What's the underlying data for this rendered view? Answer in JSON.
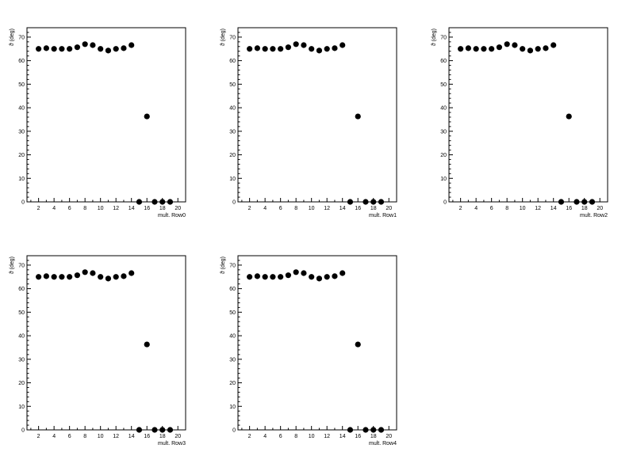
{
  "chart_data": [
    {
      "type": "scatter",
      "xlabel": "mult. Row0",
      "ylabel": "ϑ (deg)",
      "xlim": [
        0.5,
        21
      ],
      "ylim": [
        0,
        74
      ],
      "xticks": [
        2,
        4,
        6,
        8,
        10,
        12,
        14,
        16,
        18,
        20
      ],
      "yticks": [
        0,
        10,
        20,
        30,
        40,
        50,
        60,
        70
      ],
      "x": [
        2,
        3,
        4,
        5,
        6,
        7,
        8,
        9,
        10,
        11,
        12,
        13,
        14,
        15,
        16,
        17,
        18,
        19
      ],
      "y": [
        65,
        65.3,
        65,
        65,
        65,
        65.7,
        67,
        66.6,
        65,
        64.3,
        65,
        65.3,
        66.6,
        0,
        36.3,
        0,
        0,
        0
      ]
    },
    {
      "type": "scatter",
      "xlabel": "mult. Row1",
      "ylabel": "ϑ (deg)",
      "xlim": [
        0.5,
        21
      ],
      "ylim": [
        0,
        74
      ],
      "xticks": [
        2,
        4,
        6,
        8,
        10,
        12,
        14,
        16,
        18,
        20
      ],
      "yticks": [
        0,
        10,
        20,
        30,
        40,
        50,
        60,
        70
      ],
      "x": [
        2,
        3,
        4,
        5,
        6,
        7,
        8,
        9,
        10,
        11,
        12,
        13,
        14,
        15,
        16,
        17,
        18,
        19
      ],
      "y": [
        65,
        65.3,
        65,
        65,
        65,
        65.7,
        67,
        66.6,
        65,
        64.3,
        65,
        65.3,
        66.6,
        0,
        36.3,
        0,
        0,
        0
      ]
    },
    {
      "type": "scatter",
      "xlabel": "mult. Row2",
      "ylabel": "ϑ (deg)",
      "xlim": [
        0.5,
        21
      ],
      "ylim": [
        0,
        74
      ],
      "xticks": [
        2,
        4,
        6,
        8,
        10,
        12,
        14,
        16,
        18,
        20
      ],
      "yticks": [
        0,
        10,
        20,
        30,
        40,
        50,
        60,
        70
      ],
      "x": [
        2,
        3,
        4,
        5,
        6,
        7,
        8,
        9,
        10,
        11,
        12,
        13,
        14,
        15,
        16,
        17,
        18,
        19
      ],
      "y": [
        65,
        65.3,
        65,
        65,
        65,
        65.7,
        67,
        66.6,
        65,
        64.3,
        65,
        65.3,
        66.6,
        0,
        36.3,
        0,
        0,
        0
      ]
    },
    {
      "type": "scatter",
      "xlabel": "mult. Row3",
      "ylabel": "ϑ (deg)",
      "xlim": [
        0.5,
        21
      ],
      "ylim": [
        0,
        74
      ],
      "xticks": [
        2,
        4,
        6,
        8,
        10,
        12,
        14,
        16,
        18,
        20
      ],
      "yticks": [
        0,
        10,
        20,
        30,
        40,
        50,
        60,
        70
      ],
      "x": [
        2,
        3,
        4,
        5,
        6,
        7,
        8,
        9,
        10,
        11,
        12,
        13,
        14,
        15,
        16,
        17,
        18,
        19
      ],
      "y": [
        65,
        65.3,
        65,
        65,
        65,
        65.7,
        67,
        66.6,
        65,
        64.3,
        65,
        65.3,
        66.6,
        0,
        36.3,
        0,
        0,
        0
      ]
    },
    {
      "type": "scatter",
      "xlabel": "mult. Row4",
      "ylabel": "ϑ (deg)",
      "xlim": [
        0.5,
        21
      ],
      "ylim": [
        0,
        74
      ],
      "xticks": [
        2,
        4,
        6,
        8,
        10,
        12,
        14,
        16,
        18,
        20
      ],
      "yticks": [
        0,
        10,
        20,
        30,
        40,
        50,
        60,
        70
      ],
      "x": [
        2,
        3,
        4,
        5,
        6,
        7,
        8,
        9,
        10,
        11,
        12,
        13,
        14,
        15,
        16,
        17,
        18,
        19
      ],
      "y": [
        65,
        65.3,
        65,
        65,
        65,
        65.7,
        67,
        66.6,
        65,
        64.3,
        65,
        65.3,
        66.6,
        0,
        36.3,
        0,
        0,
        0
      ]
    }
  ],
  "colors": {
    "marker": "#000000",
    "axis": "#000000",
    "background": "#ffffff"
  }
}
